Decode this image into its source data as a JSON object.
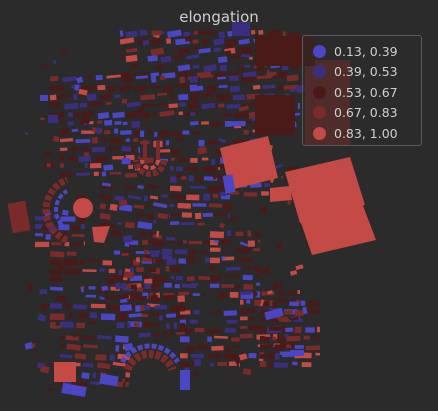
{
  "title": "elongation",
  "legend": {
    "items": [
      {
        "label": "0.13, 0.39",
        "color": "#4b46c4"
      },
      {
        "label": "0.39, 0.53",
        "color": "#3a2f7e"
      },
      {
        "label": "0.53, 0.67",
        "color": "#4a1a18"
      },
      {
        "label": "0.67, 0.83",
        "color": "#7a2a28"
      },
      {
        "label": "0.83, 1.00",
        "color": "#c44a46"
      }
    ]
  },
  "colors": {
    "background": "#2b2b2b",
    "text": "#cfcfcf"
  }
}
